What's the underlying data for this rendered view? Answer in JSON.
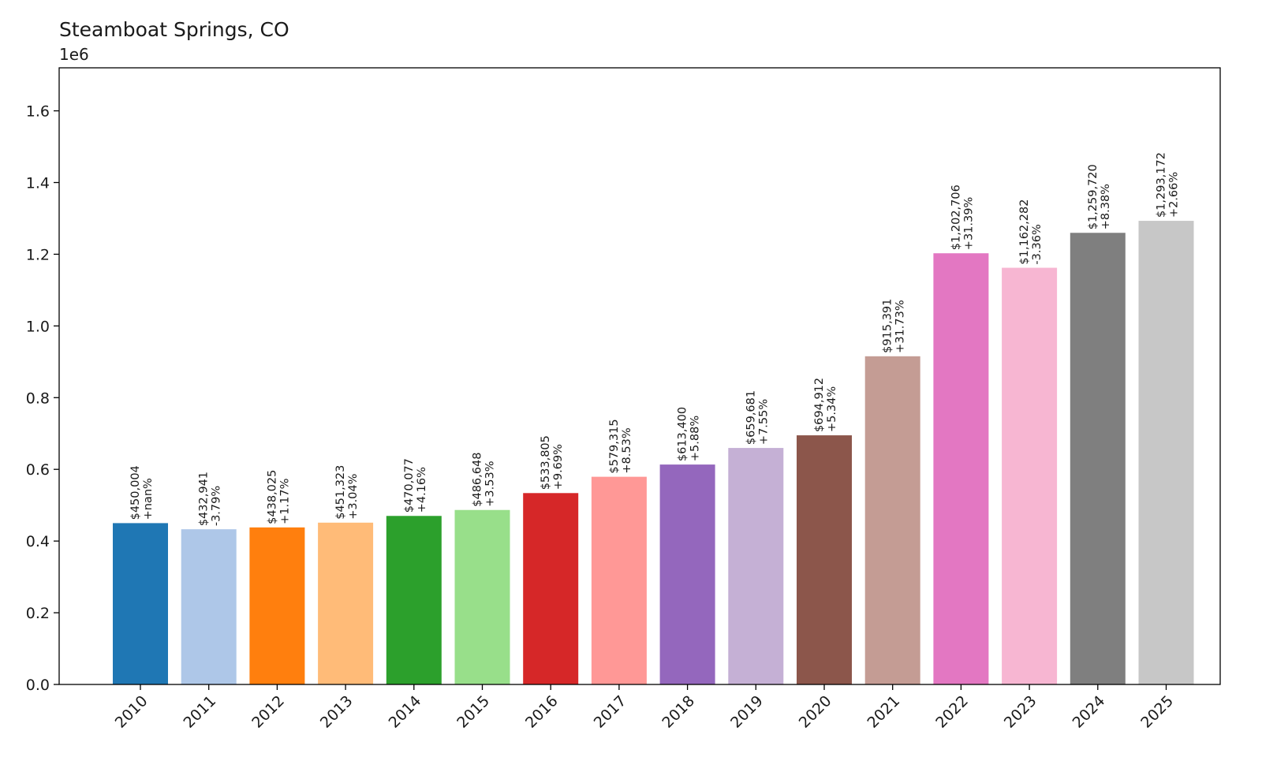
{
  "chart_data": {
    "type": "bar",
    "title": "Steamboat Springs, CO",
    "ylabel_offset": "1e6",
    "xlabel": "",
    "ylabel": "",
    "ylim": [
      0,
      1.72
    ],
    "yticks": [
      0.0,
      0.2,
      0.4,
      0.6,
      0.8,
      1.0,
      1.2,
      1.4,
      1.6
    ],
    "ytick_labels": [
      "0.0",
      "0.2",
      "0.4",
      "0.6",
      "0.8",
      "1.0",
      "1.2",
      "1.4",
      "1.6"
    ],
    "categories": [
      "2010",
      "2011",
      "2012",
      "2013",
      "2014",
      "2015",
      "2016",
      "2017",
      "2018",
      "2019",
      "2020",
      "2021",
      "2022",
      "2023",
      "2024",
      "2025"
    ],
    "values": [
      450004,
      432941,
      438025,
      451323,
      470077,
      486648,
      533805,
      579315,
      613400,
      659681,
      694912,
      915391,
      1202706,
      1162282,
      1259720,
      1293172
    ],
    "value_labels": [
      "$450,004",
      "$432,941",
      "$438,025",
      "$451,323",
      "$470,077",
      "$486,648",
      "$533,805",
      "$579,315",
      "$613,400",
      "$659,681",
      "$694,912",
      "$915,391",
      "$1,202,706",
      "$1,162,282",
      "$1,259,720",
      "$1,293,172"
    ],
    "change_labels": [
      "+nan%",
      "-3.79%",
      "+1.17%",
      "+3.04%",
      "+4.16%",
      "+3.53%",
      "+9.69%",
      "+8.53%",
      "+5.88%",
      "+7.55%",
      "+5.34%",
      "+31.73%",
      "+31.39%",
      "-3.36%",
      "+8.38%",
      "+2.66%"
    ],
    "colors": [
      "#1f77b4",
      "#aec7e8",
      "#ff7f0e",
      "#ffbb78",
      "#2ca02c",
      "#98df8a",
      "#d62728",
      "#ff9896",
      "#9467bd",
      "#c5b0d5",
      "#8c564b",
      "#c49c94",
      "#e377c2",
      "#f7b6d2",
      "#7f7f7f",
      "#c7c7c7"
    ],
    "grid": false,
    "legend": "none"
  }
}
